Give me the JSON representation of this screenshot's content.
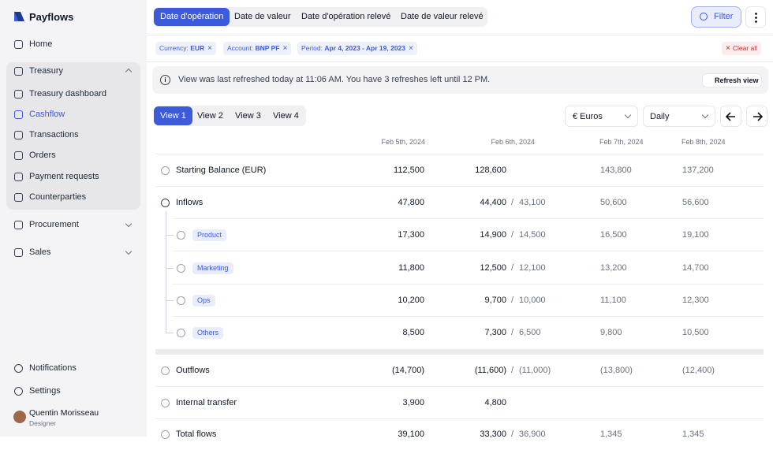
{
  "sidebar": {
    "brand": "Payflows",
    "nav": [
      {
        "label": "Home"
      },
      {
        "label": "Treasury",
        "children": [
          "Treasury dashboard",
          "Cashflow",
          "Transactions",
          "Orders",
          "Payment requests",
          "Counterparties"
        ]
      },
      {
        "label": "Procurement"
      },
      {
        "label": "Sales"
      }
    ],
    "footer": [
      "Notifications",
      "Settings"
    ],
    "user": {
      "name": "Quentin Morisseau",
      "role": "Designer"
    }
  },
  "toolbar": {
    "tabs": [
      "Date d'opération",
      "Date de valeur",
      "Date d'opération relevé",
      "Date de valeur relevé"
    ],
    "filter": "Filter"
  },
  "filters": {
    "chips": [
      {
        "key": "Currency:",
        "value": "EUR"
      },
      {
        "key": "Account:",
        "value": "BNP PF"
      },
      {
        "key": "Period:",
        "value": "Apr 4, 2023 - Apr 19, 2023"
      }
    ],
    "clear": "Clear all"
  },
  "notice": {
    "text": "View was last refreshed today at 11:06 AM. You have 3 refreshes left until 12 PM.",
    "action": "Refresh view"
  },
  "views": [
    "View 1",
    "View 2",
    "View 3",
    "View 4"
  ],
  "currency": "€ Euros",
  "frequency": "Daily",
  "table": {
    "columns": [
      "Feb 5th, 2024",
      "Feb 6th, 2024",
      "Feb 7th, 2024",
      "Feb 8th, 2024"
    ],
    "rows": [
      {
        "label": "Starting Balance (EUR)",
        "cells": [
          {
            "actual": "112,500"
          },
          {
            "actual": "128,600"
          },
          {
            "actual": "143,800"
          },
          {
            "actual": "137,200"
          }
        ]
      },
      {
        "label": "Inflows",
        "cells": [
          {
            "actual": "47,800"
          },
          {
            "actual": "44,400",
            "forecast": "43,100"
          },
          {
            "actual": "50,600"
          },
          {
            "actual": "56,600"
          }
        ]
      },
      {
        "label": "Product",
        "cells": [
          {
            "actual": "17,300"
          },
          {
            "actual": "14,900",
            "forecast": "14,500"
          },
          {
            "actual": "16,500"
          },
          {
            "actual": "19,100"
          }
        ]
      },
      {
        "label": "Marketing",
        "cells": [
          {
            "actual": "11,800"
          },
          {
            "actual": "12,500",
            "forecast": "12,100"
          },
          {
            "actual": "13,200"
          },
          {
            "actual": "14,700"
          }
        ]
      },
      {
        "label": "Ops",
        "cells": [
          {
            "actual": "10,200"
          },
          {
            "actual": "9,700",
            "forecast": "10,000"
          },
          {
            "actual": "11,100"
          },
          {
            "actual": "12,300"
          }
        ]
      },
      {
        "label": "Others",
        "cells": [
          {
            "actual": "8,500"
          },
          {
            "actual": "7,300",
            "forecast": "6,500"
          },
          {
            "actual": "9,800"
          },
          {
            "actual": "10,500"
          }
        ]
      },
      {
        "label": "Outflows",
        "cells": [
          {
            "actual": "(14,700)"
          },
          {
            "actual": "(11,600)",
            "forecast": "(11,000)"
          },
          {
            "actual": "(13,800)"
          },
          {
            "actual": "(12,400)"
          }
        ]
      },
      {
        "label": "Internal transfer",
        "cells": [
          {
            "actual": "3,900"
          },
          {
            "actual": "4,800"
          }
        ]
      },
      {
        "label": "Total flows",
        "cells": [
          {
            "actual": "39,100"
          },
          {
            "actual": "33,300",
            "forecast": "36,900"
          },
          {
            "actual": "1,345"
          },
          {
            "actual": "1,345"
          }
        ]
      }
    ]
  }
}
